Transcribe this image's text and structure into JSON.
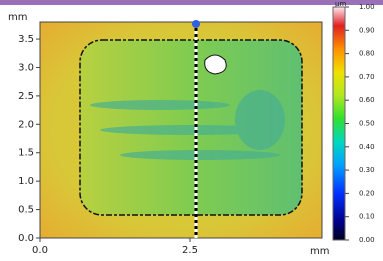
{
  "chart_data": {
    "type": "surface-map",
    "x_unit": "mm",
    "y_unit": "mm",
    "colorbar_unit": "µm",
    "xlim": [
      0,
      4.7
    ],
    "ylim": [
      0,
      3.8
    ],
    "xticks": [
      {
        "value": 0,
        "label": "0.0"
      },
      {
        "value": 2.5,
        "label": "2.5"
      }
    ],
    "yticks": [
      {
        "value": 0,
        "label": "0.0"
      },
      {
        "value": 0.5,
        "label": "0.5"
      },
      {
        "value": 1,
        "label": "1.0"
      },
      {
        "value": 1.5,
        "label": "1.5"
      },
      {
        "value": 2,
        "label": "2.0"
      },
      {
        "value": 2.5,
        "label": "2.5"
      },
      {
        "value": 3,
        "label": "3.0"
      },
      {
        "value": 3.5,
        "label": "3.5"
      }
    ],
    "colorbar_lim": [
      0,
      1
    ],
    "colorbar_ticks": [
      {
        "value": 0,
        "label": "0.00"
      },
      {
        "value": 0.1,
        "label": "0.10"
      },
      {
        "value": 0.2,
        "label": "0.20"
      },
      {
        "value": 0.3,
        "label": "0.30"
      },
      {
        "value": 0.4,
        "label": "0.40"
      },
      {
        "value": 0.5,
        "label": "0.50"
      },
      {
        "value": 0.6,
        "label": "0.60"
      },
      {
        "value": 0.7,
        "label": "0.70"
      },
      {
        "value": 0.8,
        "label": "0.80"
      },
      {
        "value": 0.9,
        "label": "0.90"
      },
      {
        "value": 1,
        "label": "1.00"
      }
    ],
    "profile_x": 2.6
  }
}
